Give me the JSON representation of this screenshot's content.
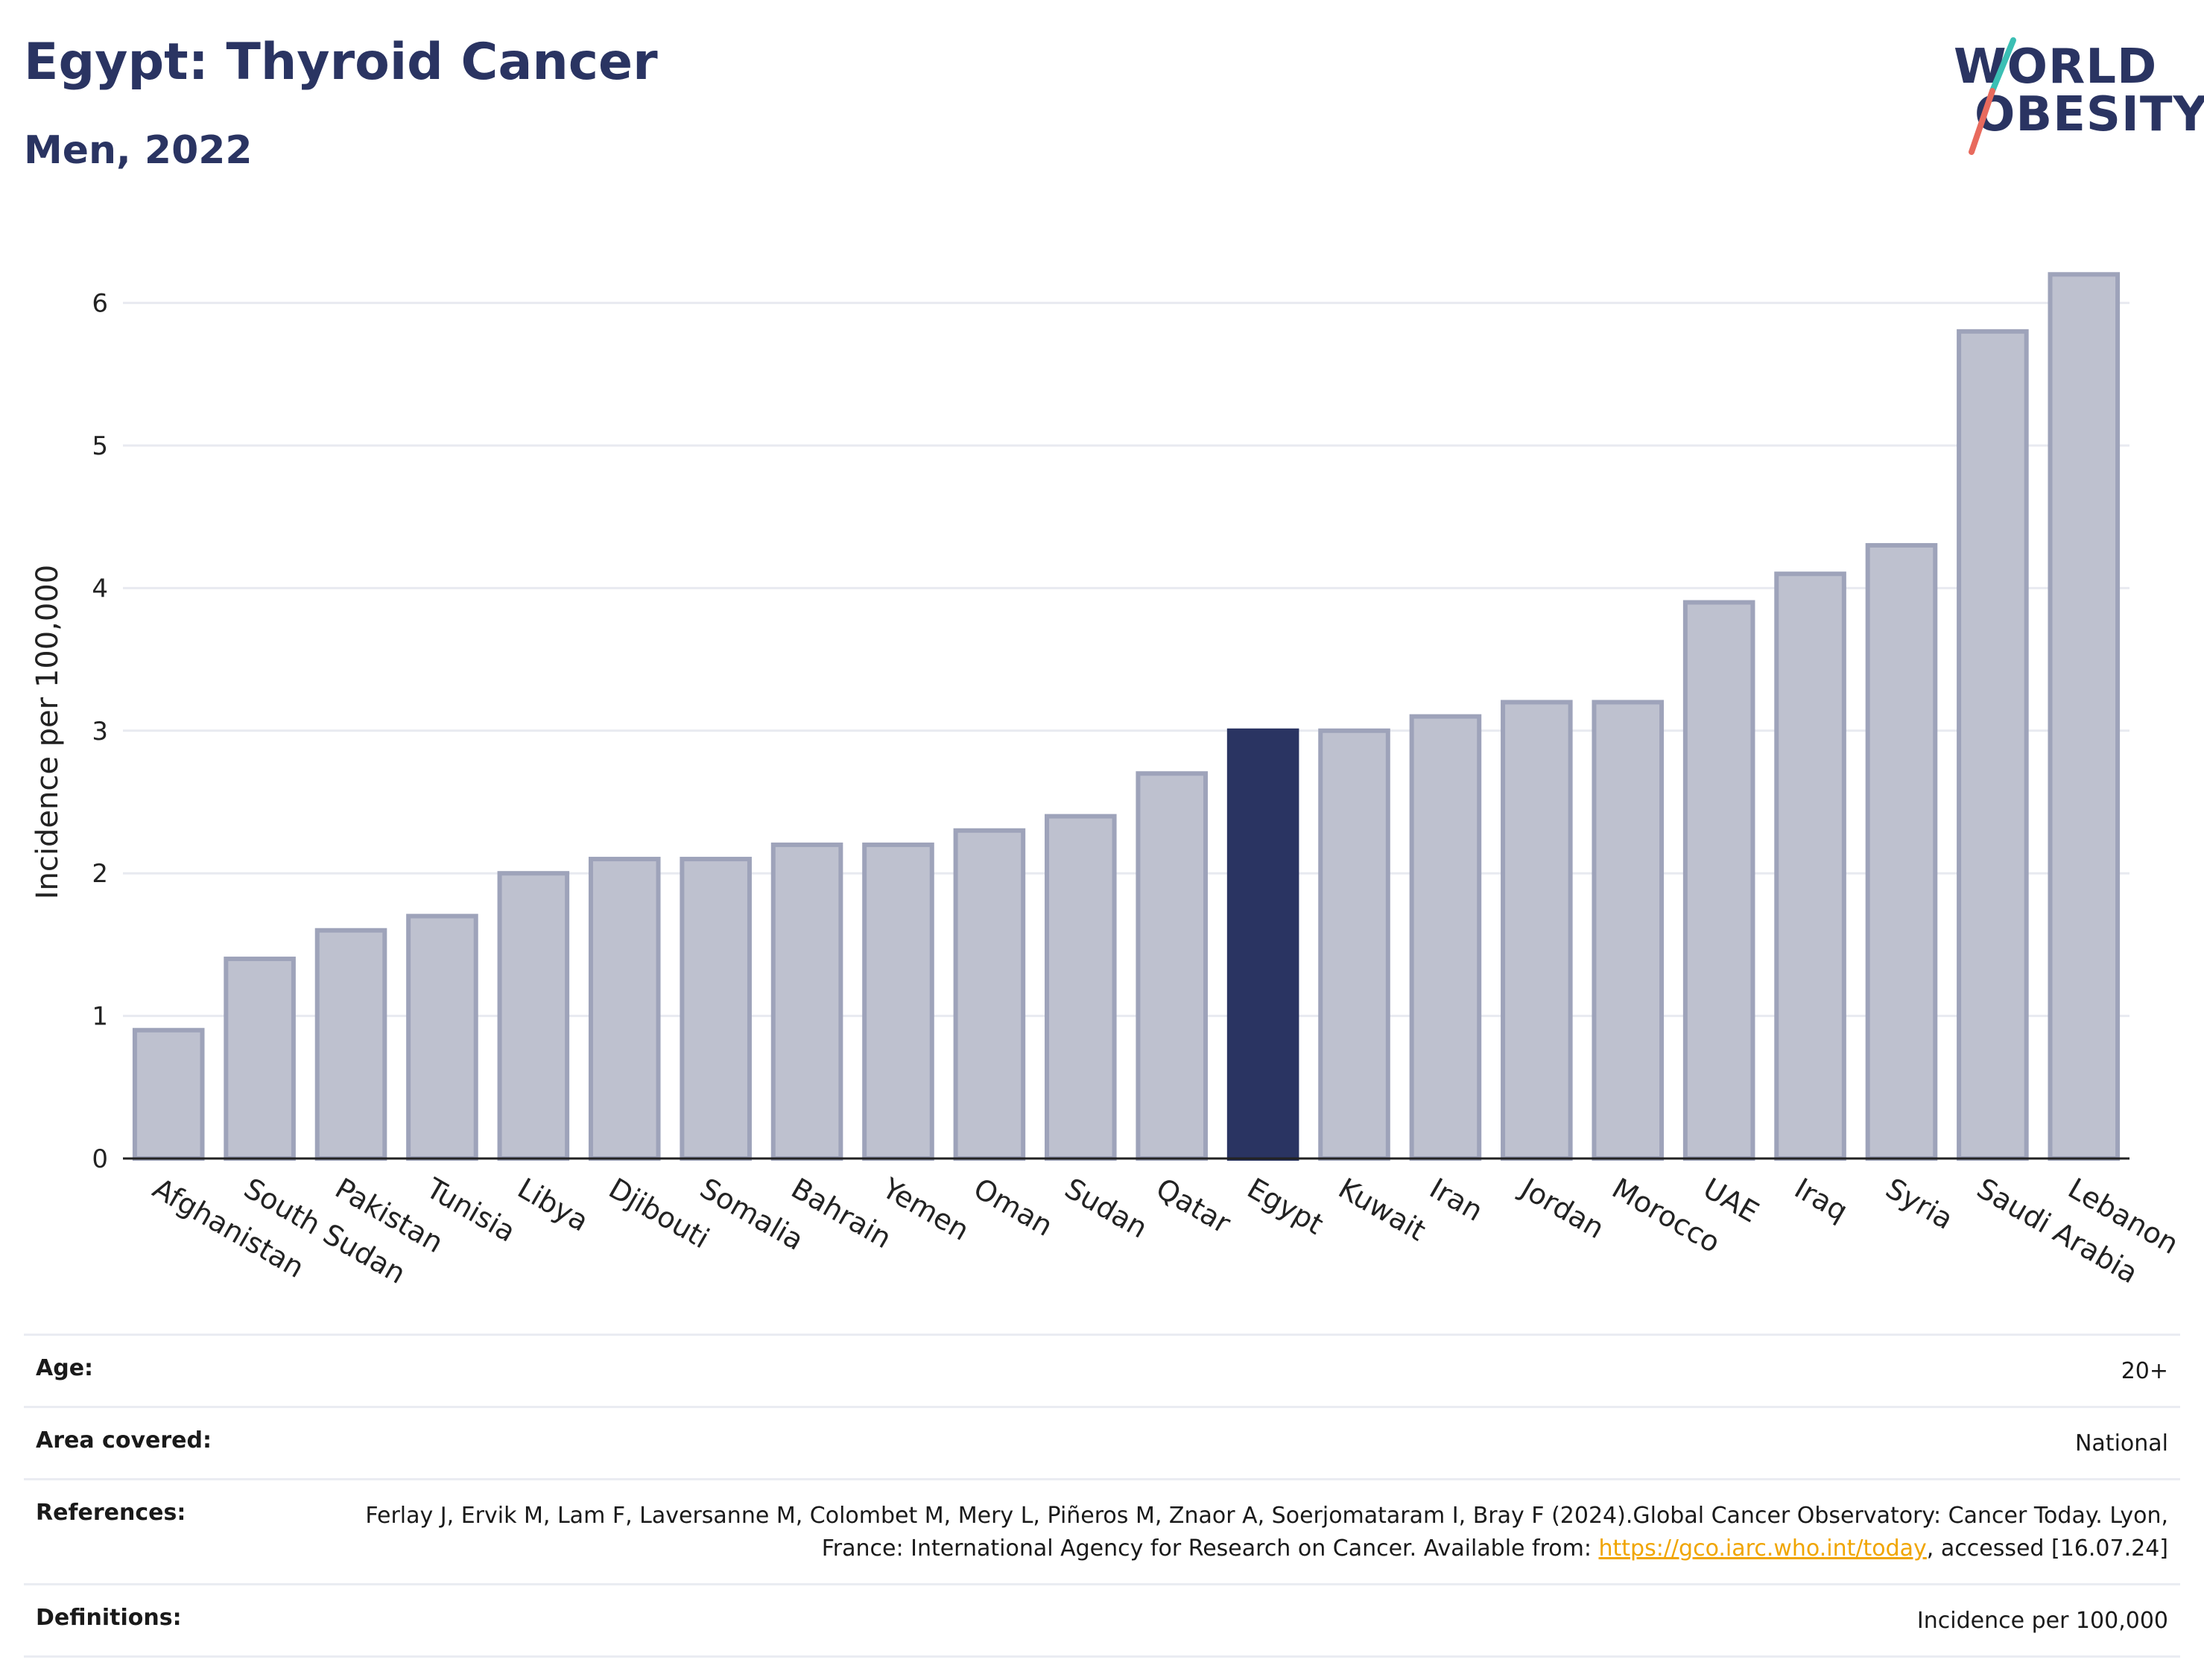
{
  "header": {
    "title": "Egypt: Thyroid Cancer",
    "subtitle": "Men, 2022"
  },
  "logo": {
    "line1": "WORLD",
    "line2": "OBESITY",
    "slash_colors": [
      "#3bbfb4",
      "#e86a5d"
    ]
  },
  "colors": {
    "highlight": "#2a3462",
    "bar_fill": "#bec1cf",
    "bar_stroke": "#9ea3ba",
    "grid": "#e8eaf0",
    "axis": "#222222"
  },
  "chart_data": {
    "type": "bar",
    "categories": [
      "Afghanistan",
      "South Sudan",
      "Pakistan",
      "Tunisia",
      "Libya",
      "Djibouti",
      "Somalia",
      "Bahrain",
      "Yemen",
      "Oman",
      "Sudan",
      "Qatar",
      "Egypt",
      "Kuwait",
      "Iran",
      "Jordan",
      "Morocco",
      "UAE",
      "Iraq",
      "Syria",
      "Saudi Arabia",
      "Lebanon"
    ],
    "values": [
      0.9,
      1.4,
      1.6,
      1.7,
      2.0,
      2.1,
      2.1,
      2.2,
      2.2,
      2.3,
      2.4,
      2.7,
      3.0,
      3.0,
      3.1,
      3.2,
      3.2,
      3.9,
      4.1,
      4.3,
      5.8,
      6.2
    ],
    "highlight": "Egypt",
    "ylabel": "Incidence per 100,000",
    "xlabel": "",
    "ylim": [
      0,
      6.4
    ],
    "yticks": [
      0,
      1,
      2,
      3,
      4,
      5,
      6
    ],
    "grid": true
  },
  "info": {
    "age": {
      "label": "Age:",
      "value": "20+"
    },
    "area": {
      "label": "Area covered:",
      "value": "National"
    },
    "references": {
      "label": "References:",
      "text_before": "Ferlay J, Ervik M, Lam F, Laversanne M, Colombet M, Mery L, Piñeros M, Znaor A, Soerjomataram I, Bray F (2024).Global Cancer Observatory: Cancer Today. Lyon, France: International Agency for Research on Cancer. Available from: ",
      "link": "https://gco.iarc.who.int/today",
      "text_after": ", accessed [16.07.24]"
    },
    "definitions": {
      "label": "Definitions:",
      "value": "Incidence per 100,000"
    }
  }
}
